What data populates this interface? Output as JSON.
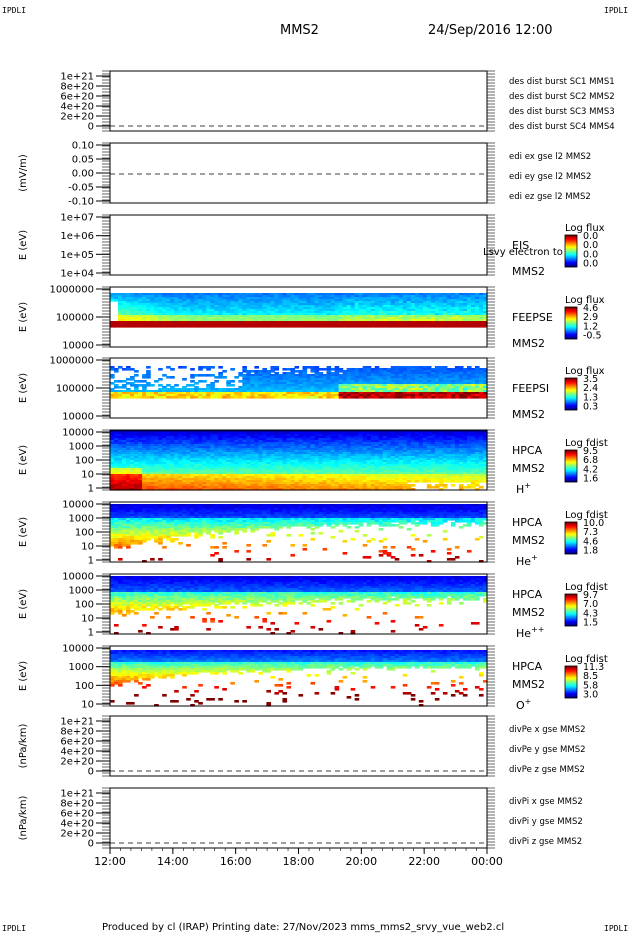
{
  "corner_mark": "IPDLI",
  "header": {
    "title": "MMS2",
    "date": "24/Sep/2016 12:00"
  },
  "footer": {
    "text": "Produced by cl (IRAP)   Printing date: 27/Nov/2023   mms_mms2_srvy_vue_web2.cl"
  },
  "chart_data": [
    {
      "type": "line",
      "ylabel": "",
      "ylim": [
        -1e+20,
        1.05e+21
      ],
      "ticks": [
        "1e+21",
        "8e+20",
        "6e+20",
        "4e+20",
        "2e+20",
        "0"
      ],
      "dashed_zero": true,
      "legend": [
        {
          "text": "des dist burst SC1 MMS1",
          "color": "#0000cc"
        },
        {
          "text": "des dist burst SC2 MMS2",
          "color": "#cc00cc"
        },
        {
          "text": "des dist burst SC3 MMS3",
          "color": "#dd0000"
        },
        {
          "text": "des dist burst SC4 MMS4",
          "color": "#00bb00"
        }
      ]
    },
    {
      "type": "line",
      "ylabel": "(mV/m)",
      "ylim": [
        -0.13,
        0.13
      ],
      "ticks": [
        "0.10",
        "0.05",
        "0.00",
        "-0.05",
        "-0.10"
      ],
      "dashed_zero": true,
      "legend": [
        {
          "text": "edi ex gse l2 MMS2",
          "color": "#dd0000"
        },
        {
          "text": "edi ey gse l2 MMS2",
          "color": "#00bb00"
        },
        {
          "text": "edi ez gse l2 MMS2",
          "color": "#0000cc"
        }
      ]
    },
    {
      "type": "heatmap",
      "ylabel": "E (eV)",
      "ylim": [
        10000.0,
        10000000.0
      ],
      "log": true,
      "ticks": [
        "1e+07",
        "1e+06",
        "1e+05",
        "1e+04"
      ],
      "instrument": "EIS",
      "spacecraft": "MMS2",
      "overlay_text": "Lsvy electron to",
      "color_title": "Log flux",
      "color_ticks": [
        "0.0",
        "0.0",
        "0.0",
        "0.0"
      ],
      "fill": "none"
    },
    {
      "type": "heatmap",
      "ylabel": "E (eV)",
      "ylim": [
        10000.0,
        1000000.0
      ],
      "log": true,
      "ticks": [
        "1000000",
        "100000",
        "10000"
      ],
      "instrument": "FEEPSE",
      "spacecraft": "MMS2",
      "color_title": "Log flux",
      "color_ticks": [
        "4.6",
        "2.9",
        "1.2",
        "-0.5"
      ],
      "fill": "feepse"
    },
    {
      "type": "heatmap",
      "ylabel": "E (eV)",
      "ylim": [
        10000.0,
        1000000.0
      ],
      "log": true,
      "ticks": [
        "1000000",
        "100000",
        "10000"
      ],
      "instrument": "FEEPSI",
      "spacecraft": "MMS2",
      "color_title": "Log flux",
      "color_ticks": [
        "3.5",
        "2.4",
        "1.3",
        "0.3"
      ],
      "fill": "feepsi"
    },
    {
      "type": "heatmap",
      "ylabel": "E (eV)",
      "ylim": [
        1,
        40000
      ],
      "log": true,
      "ticks": [
        "10000",
        "1000",
        "100",
        "10",
        "1"
      ],
      "instrument": "HPCA",
      "spacecraft": "MMS2",
      "species": "H",
      "species_sup": "+",
      "color_title": "Log fdist",
      "color_ticks": [
        "9.5",
        "6.8",
        "4.2",
        "1.6"
      ],
      "fill": "hplus"
    },
    {
      "type": "heatmap",
      "ylabel": "E (eV)",
      "ylim": [
        1,
        40000
      ],
      "log": true,
      "ticks": [
        "10000",
        "1000",
        "100",
        "10",
        "1"
      ],
      "instrument": "HPCA",
      "spacecraft": "MMS2",
      "species": "He",
      "species_sup": "+",
      "color_title": "Log fdist",
      "color_ticks": [
        "10.0",
        "7.3",
        "4.6",
        "1.8"
      ],
      "fill": "heplus"
    },
    {
      "type": "heatmap",
      "ylabel": "E (eV)",
      "ylim": [
        1,
        40000
      ],
      "log": true,
      "ticks": [
        "10000",
        "1000",
        "100",
        "10",
        "1"
      ],
      "instrument": "HPCA",
      "spacecraft": "MMS2",
      "species": "He",
      "species_sup": "++",
      "color_title": "Log fdist",
      "color_ticks": [
        "9.7",
        "7.0",
        "4.3",
        "1.5"
      ],
      "fill": "heplusplus"
    },
    {
      "type": "heatmap",
      "ylabel": "E (eV)",
      "ylim": [
        1,
        40000
      ],
      "log": true,
      "ticks": [
        "10000",
        "1000",
        "100",
        "10"
      ],
      "instrument": "HPCA",
      "spacecraft": "MMS2",
      "species": "O",
      "species_sup": "+",
      "color_title": "Log fdist",
      "color_ticks": [
        "11.3",
        "8.5",
        "5.8",
        "3.0"
      ],
      "fill": "oplus"
    },
    {
      "type": "line",
      "ylabel": "(nPa/km)",
      "ylim": [
        -1e+20,
        1.05e+21
      ],
      "ticks": [
        "1e+21",
        "8e+20",
        "6e+20",
        "4e+20",
        "2e+20",
        "0"
      ],
      "dashed_zero": true,
      "legend": [
        {
          "text": "divPe x gse MMS2",
          "color": "#dd0000"
        },
        {
          "text": "divPe y gse MMS2",
          "color": "#00bb00"
        },
        {
          "text": "divPe z gse MMS2",
          "color": "#0000cc"
        }
      ]
    },
    {
      "type": "line",
      "ylabel": "(nPa/km)",
      "ylim": [
        -1e+20,
        1.05e+21
      ],
      "ticks": [
        "1e+21",
        "8e+20",
        "6e+20",
        "4e+20",
        "2e+20",
        "0"
      ],
      "dashed_zero": true,
      "legend": [
        {
          "text": "divPi x gse MMS2",
          "color": "#dd0000"
        },
        {
          "text": "divPi y gse MMS2",
          "color": "#00bb00"
        },
        {
          "text": "divPi z gse MMS2",
          "color": "#0000cc"
        }
      ]
    }
  ],
  "x_axis": {
    "ticks": [
      "12:00",
      "14:00",
      "16:00",
      "18:00",
      "20:00",
      "22:00",
      "00:00"
    ]
  }
}
